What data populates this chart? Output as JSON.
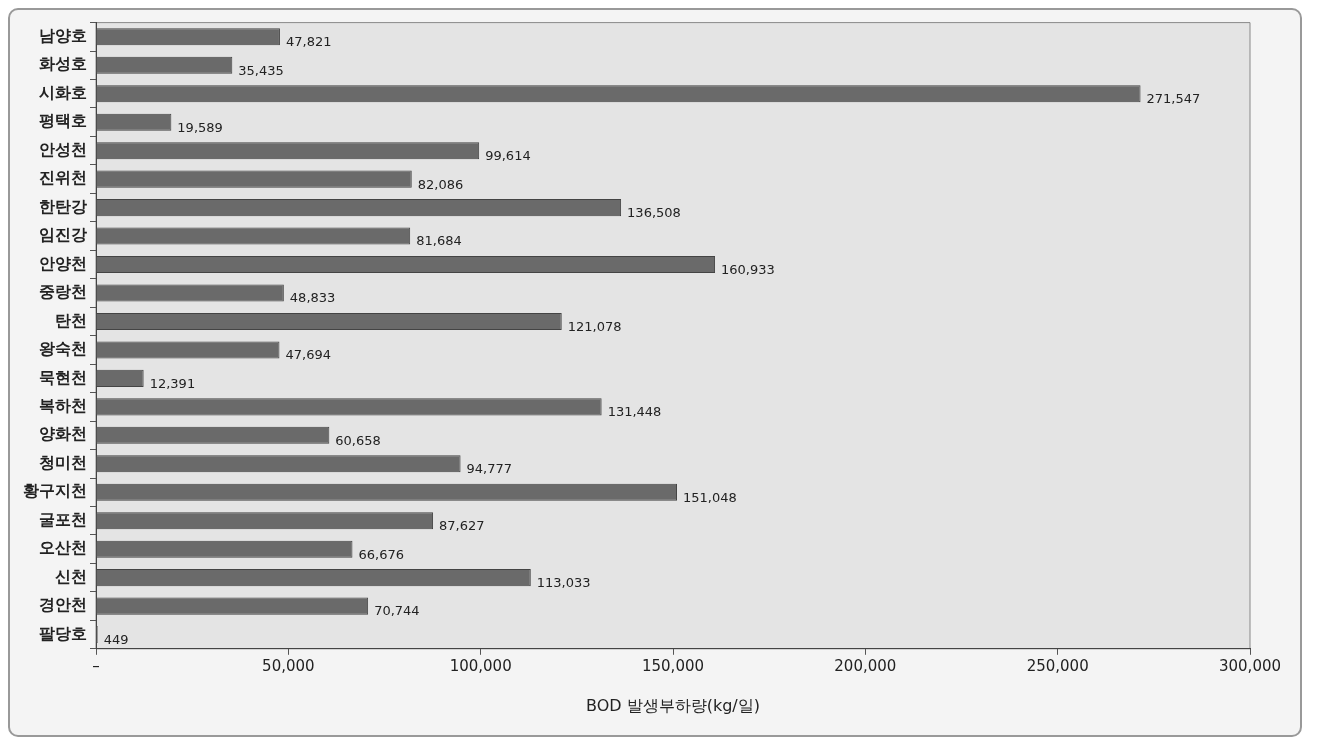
{
  "chart_data": {
    "type": "bar",
    "orientation": "horizontal",
    "xlabel": "BOD 발생부하량(kg/일)",
    "categories": [
      "남양호",
      "화성호",
      "시화호",
      "평택호",
      "안성천",
      "진위천",
      "한탄강",
      "임진강",
      "안양천",
      "중랑천",
      "탄천",
      "왕숙천",
      "묵현천",
      "복하천",
      "양화천",
      "청미천",
      "황구지천",
      "굴포천",
      "오산천",
      "신천",
      "경안천",
      "팔당호"
    ],
    "values": [
      47821,
      35435,
      271547,
      19589,
      99614,
      82086,
      136508,
      81684,
      160933,
      48833,
      121078,
      47694,
      12391,
      131448,
      60658,
      94777,
      151048,
      87627,
      66676,
      113033,
      70744,
      449
    ],
    "value_labels": [
      "47,821",
      "35,435",
      "271,547",
      "19,589",
      "99,614",
      "82,086",
      "136,508",
      "81,684",
      "160,933",
      "48,833",
      "121,078",
      "47,694",
      "12,391",
      "131,448",
      "60,658",
      "94,777",
      "151,048",
      "87,627",
      "66,676",
      "113,033",
      "70,744",
      "449"
    ],
    "color": "#6a6a6a",
    "xlim": [
      0,
      300000
    ],
    "xticks": [
      {
        "value": 0,
        "label": "–"
      },
      {
        "value": 50000,
        "label": "50,000"
      },
      {
        "value": 100000,
        "label": "100,000"
      },
      {
        "value": 150000,
        "label": "150,000"
      },
      {
        "value": 200000,
        "label": "200,000"
      },
      {
        "value": 250000,
        "label": "250,000"
      },
      {
        "value": 300000,
        "label": "300,000"
      }
    ],
    "grid": false,
    "legend": false
  }
}
